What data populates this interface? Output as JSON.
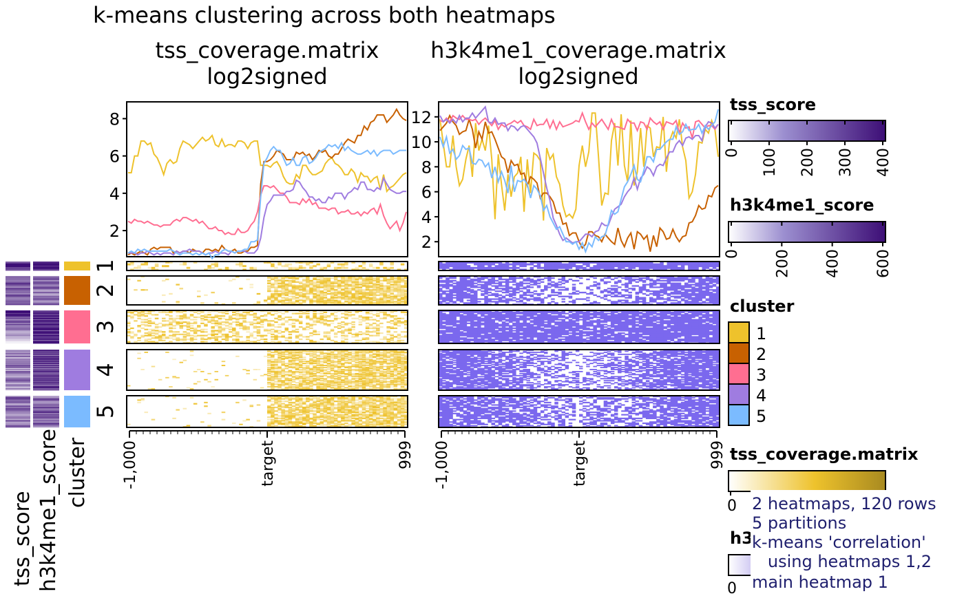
{
  "title": "k-means clustering across both heatmaps",
  "panels": [
    {
      "title_line1": "tss_coverage.matrix",
      "title_line2": "log2signed"
    },
    {
      "title_line1": "h3k4me1_coverage.matrix",
      "title_line2": "log2signed"
    }
  ],
  "x_ticks": [
    "-1,000",
    "target",
    "999"
  ],
  "side_labels": [
    "tss_score",
    "h3k4me1_score",
    "cluster"
  ],
  "cluster_labels": [
    "1",
    "2",
    "3",
    "4",
    "5"
  ],
  "colors": {
    "clusters": [
      "#EEC22C",
      "#C86101",
      "#FF6E91",
      "#9F7CE0",
      "#7BBBFF"
    ],
    "heatmap1_high": "#EEC22C",
    "heatmap2_high": "#7B68EE",
    "score_high": "#3D0E76",
    "note_text": "#1F1F6E"
  },
  "legends": {
    "tss_score": {
      "title": "tss_score",
      "ticks": [
        "0",
        "100",
        "200",
        "300",
        "400"
      ]
    },
    "h3k4me1_score": {
      "title": "h3k4me1_score",
      "ticks": [
        "0",
        "200",
        "400",
        "600"
      ]
    },
    "cluster": {
      "title": "cluster",
      "items": [
        "1",
        "2",
        "3",
        "4",
        "5"
      ]
    },
    "tss_coverage": {
      "title": "tss_coverage.matrix",
      "tick0": "0"
    },
    "h3k4me1_coverage": {
      "title_visible": "h3",
      "tick0": "0"
    }
  },
  "notes": [
    "2 heatmaps, 120 rows",
    "5 partitions",
    "k-means 'correlation'",
    "   using heatmaps 1,2",
    "main heatmap 1"
  ],
  "chart_data": [
    {
      "type": "line",
      "title": "tss_coverage.matrix log2signed",
      "x_ticks": [
        "-1,000",
        "target",
        "999"
      ],
      "ylim": [
        0.6,
        8.9
      ],
      "y_ticks": [
        2,
        4,
        6,
        8
      ],
      "grid": false,
      "series": [
        {
          "name": "1",
          "values": [
            5.1,
            5.1,
            6.0,
            6.0,
            6.8,
            6.8,
            6.6,
            6.7,
            6.1,
            5.9,
            5.5,
            5.0,
            5.6,
            5.8,
            5.6,
            5.7,
            6.4,
            6.8,
            6.7,
            6.6,
            6.4,
            6.6,
            6.8,
            7.0,
            6.8,
            6.9,
            7.1,
            6.6,
            6.5,
            6.9,
            6.5,
            6.6,
            6.6,
            6.5,
            6.8,
            6.8,
            6.7,
            6.4,
            6.7,
            6.8,
            6.8,
            5.5,
            5.5,
            5.5,
            5.4,
            5.6,
            5.7,
            5.4,
            4.9,
            4.6,
            4.5,
            4.5,
            5.0,
            4.8,
            5.5,
            5.5,
            5.2,
            5.0,
            5.0,
            5.1,
            5.2,
            5.6,
            5.8,
            5.9,
            5.6,
            5.5,
            5.3,
            5.0,
            5.0,
            5.3,
            5.1,
            4.6,
            5.1,
            4.9,
            4.9,
            4.6,
            4.8,
            4.9,
            4.2,
            5.0,
            4.1,
            4.3,
            4.4,
            4.6,
            4.8,
            5.0,
            5.1
          ]
        },
        {
          "name": "2",
          "values": [
            0.7,
            0.8,
            0.7,
            0.8,
            0.9,
            0.8,
            0.7,
            1.0,
            1.1,
            1.0,
            1.1,
            1.1,
            1.1,
            1.1,
            0.8,
            0.9,
            0.8,
            0.9,
            0.9,
            0.8,
            1.0,
            0.9,
            0.9,
            0.8,
            1.0,
            1.0,
            0.9,
            1.0,
            0.9,
            1.2,
            1.0,
            0.9,
            0.9,
            1.0,
            0.8,
            0.8,
            0.9,
            0.9,
            1.1,
            1.1,
            1.2,
            4.5,
            5.7,
            5.7,
            5.8,
            6.0,
            6.3,
            6.2,
            6.1,
            5.8,
            5.8,
            5.8,
            6.2,
            6.1,
            6.2,
            6.0,
            6.1,
            5.8,
            6.0,
            6.3,
            6.2,
            6.3,
            6.0,
            5.9,
            6.1,
            6.1,
            6.4,
            6.7,
            6.9,
            6.8,
            6.7,
            7.1,
            7.1,
            7.6,
            7.4,
            7.8,
            7.9,
            8.2,
            8.2,
            8.2,
            7.8,
            8.0,
            8.2,
            8.5,
            8.2,
            8.0,
            7.9
          ]
        },
        {
          "name": "3",
          "values": [
            2.5,
            2.4,
            2.6,
            2.5,
            2.5,
            2.4,
            2.5,
            2.4,
            2.3,
            2.3,
            2.2,
            2.3,
            2.3,
            2.3,
            2.5,
            2.6,
            2.5,
            2.7,
            2.7,
            2.6,
            2.5,
            2.6,
            2.4,
            2.5,
            2.3,
            2.1,
            2.1,
            2.2,
            2.0,
            2.0,
            1.8,
            1.9,
            1.8,
            1.8,
            2.1,
            1.9,
            1.9,
            2.0,
            2.3,
            2.5,
            3.0,
            3.9,
            4.4,
            4.4,
            4.3,
            4.4,
            4.2,
            4.0,
            4.0,
            3.8,
            3.5,
            3.5,
            3.5,
            3.4,
            3.7,
            3.5,
            3.7,
            3.4,
            3.5,
            3.2,
            3.2,
            3.2,
            3.1,
            3.2,
            3.2,
            2.9,
            3.0,
            3.0,
            3.1,
            2.9,
            2.9,
            3.0,
            2.8,
            3.0,
            2.9,
            3.1,
            3.2,
            2.9,
            3.4,
            2.8,
            2.4,
            2.1,
            2.3,
            2.5,
            2.0,
            2.4,
            3.0
          ]
        },
        {
          "name": "4",
          "values": [
            0.8,
            0.8,
            0.8,
            0.7,
            0.8,
            0.8,
            0.9,
            0.8,
            0.7,
            0.8,
            0.7,
            0.8,
            0.8,
            0.8,
            0.7,
            0.9,
            0.8,
            0.9,
            0.9,
            1.0,
            0.9,
            0.9,
            0.9,
            0.8,
            0.7,
            0.8,
            0.8,
            0.9,
            0.8,
            0.8,
            0.8,
            0.7,
            0.9,
            0.8,
            0.9,
            0.9,
            0.9,
            0.8,
            0.8,
            0.8,
            1.0,
            1.6,
            2.7,
            3.4,
            3.6,
            3.9,
            3.9,
            3.9,
            3.9,
            4.1,
            4.1,
            4.2,
            4.7,
            4.6,
            4.3,
            4.1,
            3.8,
            3.8,
            3.6,
            3.7,
            3.5,
            3.5,
            3.8,
            3.7,
            4.0,
            4.0,
            4.0,
            3.7,
            4.0,
            4.1,
            4.3,
            4.2,
            4.6,
            4.6,
            4.2,
            4.2,
            4.1,
            4.3,
            4.2,
            4.8,
            4.5,
            4.2,
            4.1,
            4.0,
            4.0,
            4.1,
            4.1
          ]
        },
        {
          "name": "5",
          "values": [
            0.8,
            0.9,
            0.8,
            1.0,
            0.9,
            1.0,
            0.9,
            0.9,
            0.9,
            0.9,
            0.9,
            0.9,
            0.9,
            1.0,
            0.9,
            0.8,
            0.7,
            0.8,
            0.8,
            0.8,
            0.7,
            0.8,
            0.7,
            0.8,
            0.7,
            0.8,
            0.5,
            0.7,
            0.7,
            0.9,
            1.0,
            0.9,
            0.9,
            0.8,
            0.9,
            0.9,
            1.0,
            1.0,
            1.4,
            1.4,
            1.5,
            3.8,
            5.6,
            5.9,
            6.3,
            6.5,
            6.3,
            6.3,
            5.9,
            5.5,
            5.6,
            5.9,
            5.5,
            5.5,
            5.9,
            6.0,
            5.6,
            5.7,
            5.9,
            6.2,
            6.3,
            6.4,
            6.6,
            6.5,
            6.6,
            6.4,
            6.7,
            6.3,
            6.5,
            6.3,
            6.2,
            6.1,
            6.1,
            6.2,
            6.3,
            6.1,
            6.3,
            6.0,
            6.2,
            6.3,
            6.3,
            6.3,
            6.1,
            6.2,
            6.3,
            6.3,
            6.3
          ]
        }
      ]
    },
    {
      "type": "line",
      "title": "h3k4me1_coverage.matrix log2signed",
      "x_ticks": [
        "-1,000",
        "target",
        "999"
      ],
      "ylim": [
        0.8,
        13.2
      ],
      "y_ticks": [
        2,
        4,
        6,
        8,
        10,
        12
      ],
      "grid": false,
      "series": [
        {
          "name": "1",
          "values": [
            11.8,
            9.9,
            8.0,
            8.0,
            10.5,
            8.0,
            6.5,
            7.0,
            8.6,
            9.7,
            7.2,
            11.5,
            9.3,
            10.2,
            9.3,
            11.3,
            8.6,
            3.8,
            9.0,
            6.6,
            4.5,
            7.4,
            5.6,
            7.2,
            7.5,
            8.8,
            4.4,
            8.6,
            5.9,
            9.1,
            8.9,
            8.5,
            3.7,
            9.5,
            8.6,
            9.0,
            7.2,
            6.6,
            4.9,
            4.0,
            4.2,
            3.9,
            4.6,
            8.1,
            9.7,
            8.0,
            9.2,
            12.3,
            12.3,
            8.8,
            4.9,
            5.9,
            5.8,
            10.1,
            11.5,
            8.1,
            12.2,
            8.1,
            6.8,
            11.7,
            6.5,
            7.6,
            11.1,
            8.0,
            11.3,
            11.1,
            8.8,
            9.6,
            9.5,
            12.0,
            7.6,
            10.1,
            10.8,
            10.3,
            11.8,
            9.6,
            8.5,
            5.5,
            6.0,
            7.4,
            10.0,
            9.9,
            11.0,
            10.7,
            11.7,
            11.0,
            8.8
          ]
        },
        {
          "name": "2",
          "values": [
            10.9,
            11.2,
            11.5,
            12.1,
            11.6,
            11.3,
            10.6,
            10.8,
            10.9,
            11.8,
            11.0,
            9.5,
            10.8,
            10.2,
            11.6,
            10.7,
            10.8,
            10.2,
            9.5,
            8.8,
            8.6,
            7.5,
            8.5,
            8.1,
            8.2,
            7.4,
            7.5,
            6.5,
            7.2,
            7.0,
            6.7,
            5.5,
            5.9,
            5.9,
            5.6,
            5.2,
            4.3,
            4.3,
            3.4,
            3.5,
            2.5,
            2.7,
            2.7,
            2.0,
            1.5,
            1.8,
            2.8,
            2.8,
            2.5,
            2.4,
            2.0,
            2.6,
            2.3,
            2.0,
            1.8,
            3.1,
            2.1,
            1.6,
            2.3,
            2.7,
            1.4,
            2.8,
            2.6,
            2.2,
            2.5,
            1.2,
            2.5,
            1.6,
            3.1,
            2.8,
            2.2,
            2.3,
            3.0,
            2.4,
            2.0,
            2.4,
            2.5,
            3.5,
            3.6,
            4.1,
            4.9,
            4.6,
            4.7,
            5.7,
            5.6,
            6.3,
            6.5
          ]
        },
        {
          "name": "3",
          "values": [
            11.7,
            11.6,
            11.9,
            11.6,
            12.1,
            11.9,
            11.8,
            12.1,
            11.8,
            11.8,
            11.7,
            11.8,
            11.4,
            11.7,
            11.9,
            11.6,
            11.3,
            11.7,
            11.0,
            11.4,
            11.2,
            11.4,
            11.5,
            11.7,
            11.5,
            11.7,
            11.3,
            11.2,
            11.0,
            11.8,
            11.3,
            11.4,
            11.4,
            11.8,
            11.1,
            11.7,
            11.0,
            11.6,
            11.2,
            11.3,
            11.4,
            11.5,
            11.7,
            11.6,
            12.3,
            11.6,
            11.0,
            11.5,
            11.2,
            11.5,
            11.8,
            11.4,
            11.0,
            11.8,
            11.2,
            11.2,
            11.1,
            11.0,
            11.8,
            11.5,
            11.5,
            10.9,
            11.6,
            11.5,
            11.0,
            11.9,
            11.6,
            11.4,
            11.6,
            11.0,
            11.6,
            11.5,
            11.4,
            11.7,
            10.7,
            11.5,
            11.1,
            11.2,
            10.3,
            11.6,
            11.7,
            11.4,
            11.1,
            11.3,
            11.3,
            11.0,
            11.4
          ]
        },
        {
          "name": "4",
          "values": [
            12.1,
            11.6,
            11.8,
            11.5,
            11.8,
            11.5,
            12.1,
            11.6,
            11.9,
            11.9,
            12.3,
            11.9,
            12.2,
            12.5,
            12.8,
            11.6,
            11.5,
            11.9,
            11.4,
            11.5,
            11.5,
            10.9,
            11.3,
            11.2,
            10.9,
            11.2,
            11.3,
            11.0,
            10.7,
            10.4,
            9.9,
            8.7,
            7.5,
            6.3,
            5.3,
            3.9,
            3.3,
            2.6,
            2.1,
            2.3,
            2.1,
            1.9,
            2.0,
            2.0,
            2.3,
            2.6,
            2.6,
            2.4,
            2.8,
            2.9,
            3.5,
            3.3,
            3.3,
            4.0,
            4.6,
            4.8,
            5.0,
            5.6,
            6.0,
            6.3,
            7.1,
            6.2,
            7.1,
            7.4,
            8.0,
            7.8,
            7.3,
            8.0,
            8.2,
            8.1,
            8.7,
            9.2,
            9.2,
            9.8,
            10.1,
            9.7,
            10.3,
            10.4,
            10.2,
            10.5,
            10.5,
            10.1,
            11.2,
            11.6,
            11.5,
            11.1,
            11.4
          ]
        },
        {
          "name": "5",
          "values": [
            10.4,
            9.6,
            10.4,
            9.1,
            9.4,
            8.6,
            8.9,
            9.7,
            9.4,
            9.5,
            8.3,
            8.2,
            8.6,
            8.5,
            8.0,
            8.3,
            7.1,
            8.0,
            6.8,
            7.6,
            6.9,
            5.9,
            8.1,
            6.0,
            6.9,
            6.8,
            7.0,
            6.6,
            5.5,
            6.5,
            6.2,
            5.7,
            4.5,
            4.9,
            4.0,
            3.5,
            3.0,
            3.2,
            2.6,
            2.0,
            2.0,
            1.8,
            2.0,
            1.4,
            1.9,
            1.2,
            1.9,
            1.6,
            2.4,
            2.1,
            2.4,
            2.5,
            3.4,
            4.5,
            4.2,
            4.4,
            5.4,
            6.4,
            6.8,
            7.4,
            8.1,
            7.0,
            6.8,
            7.7,
            8.8,
            8.8,
            8.4,
            9.4,
            9.4,
            9.7,
            10.0,
            10.2,
            10.2,
            11.2,
            10.6,
            10.8,
            11.4,
            10.9,
            11.0,
            11.0,
            11.4,
            10.7,
            11.3,
            11.0,
            11.3,
            11.6,
            12.6
          ]
        }
      ]
    }
  ]
}
